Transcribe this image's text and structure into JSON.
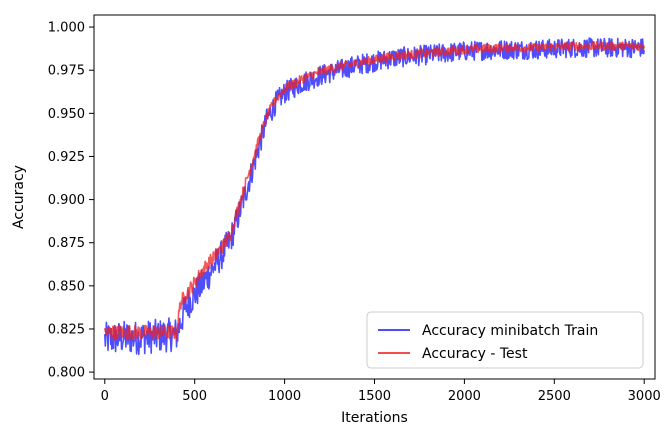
{
  "chart_data": {
    "type": "line",
    "title": "",
    "xlabel": "Iterations",
    "ylabel": "Accuracy",
    "xlim": [
      -60,
      3060
    ],
    "ylim": [
      0.796,
      1.007
    ],
    "x_ticks": [
      0,
      500,
      1000,
      1500,
      2000,
      2500,
      3000
    ],
    "x_tick_labels": [
      "0",
      "500",
      "1000",
      "1500",
      "2000",
      "2500",
      "3000"
    ],
    "y_ticks": [
      0.8,
      0.825,
      0.85,
      0.875,
      0.9,
      0.925,
      0.95,
      0.975,
      1.0
    ],
    "y_tick_labels": [
      "0.800",
      "0.825",
      "0.850",
      "0.875",
      "0.900",
      "0.925",
      "0.950",
      "0.975",
      "1.000"
    ],
    "grid": false,
    "legend_position": "lower-right",
    "series": [
      {
        "name": "Accuracy minibatch Train",
        "color": "#2222ff",
        "noise_amplitude": 0.009,
        "x": [
          0,
          100,
          200,
          300,
          400,
          450,
          500,
          550,
          600,
          650,
          700,
          750,
          800,
          850,
          900,
          950,
          1000,
          1100,
          1200,
          1300,
          1400,
          1500,
          1600,
          1800,
          2000,
          2200,
          2400,
          2600,
          2800,
          3000
        ],
        "y": [
          0.819,
          0.82,
          0.82,
          0.821,
          0.822,
          0.838,
          0.845,
          0.852,
          0.86,
          0.868,
          0.877,
          0.893,
          0.91,
          0.928,
          0.946,
          0.956,
          0.962,
          0.968,
          0.972,
          0.975,
          0.978,
          0.98,
          0.982,
          0.984,
          0.986,
          0.987,
          0.987,
          0.988,
          0.988,
          0.988
        ]
      },
      {
        "name": "Accuracy - Test",
        "color": "#ee2222",
        "noise_amplitude": 0.004,
        "x": [
          0,
          100,
          200,
          300,
          400,
          420,
          450,
          500,
          550,
          600,
          650,
          700,
          750,
          800,
          850,
          900,
          950,
          1000,
          1100,
          1200,
          1300,
          1400,
          1500,
          1600,
          1800,
          2000,
          2200,
          2400,
          2600,
          2800,
          3000
        ],
        "y": [
          0.823,
          0.823,
          0.823,
          0.823,
          0.823,
          0.84,
          0.845,
          0.852,
          0.86,
          0.866,
          0.872,
          0.88,
          0.898,
          0.915,
          0.932,
          0.948,
          0.958,
          0.964,
          0.97,
          0.974,
          0.977,
          0.979,
          0.981,
          0.983,
          0.985,
          0.987,
          0.988,
          0.988,
          0.989,
          0.989,
          0.989
        ]
      }
    ]
  }
}
